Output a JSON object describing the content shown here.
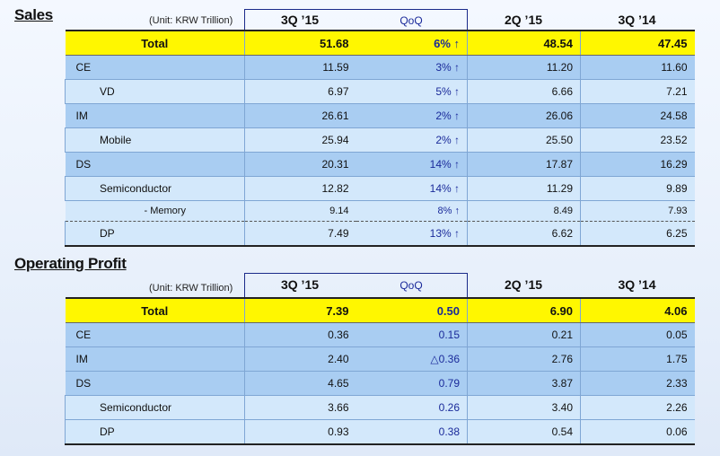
{
  "sales": {
    "title": "Sales",
    "unit": "(Unit: KRW Trillion)",
    "columns": [
      "3Q ’15",
      "QoQ",
      "2Q ’15",
      "3Q ’14"
    ],
    "rows": [
      {
        "label": "Total",
        "level": "total",
        "q3_15": "51.68",
        "qoq": "6% ↑",
        "q2_15": "48.54",
        "q3_14": "47.45"
      },
      {
        "label": "CE",
        "level": "l1",
        "q3_15": "11.59",
        "qoq": "3% ↑",
        "q2_15": "11.20",
        "q3_14": "11.60"
      },
      {
        "label": "VD",
        "level": "l2",
        "q3_15": "6.97",
        "qoq": "5% ↑",
        "q2_15": "6.66",
        "q3_14": "7.21"
      },
      {
        "label": "IM",
        "level": "l1",
        "q3_15": "26.61",
        "qoq": "2% ↑",
        "q2_15": "26.06",
        "q3_14": "24.58"
      },
      {
        "label": "Mobile",
        "level": "l2",
        "q3_15": "25.94",
        "qoq": "2% ↑",
        "q2_15": "25.50",
        "q3_14": "23.52"
      },
      {
        "label": "DS",
        "level": "l1",
        "q3_15": "20.31",
        "qoq": "14% ↑",
        "q2_15": "17.87",
        "q3_14": "16.29"
      },
      {
        "label": "Semiconductor",
        "level": "l2",
        "q3_15": "12.82",
        "qoq": "14% ↑",
        "q2_15": "11.29",
        "q3_14": "9.89"
      },
      {
        "label": "- Memory",
        "level": "l3",
        "q3_15": "9.14",
        "qoq": "8% ↑",
        "q2_15": "8.49",
        "q3_14": "7.93"
      },
      {
        "label": "DP",
        "level": "l2",
        "q3_15": "7.49",
        "qoq": "13% ↑",
        "q2_15": "6.62",
        "q3_14": "6.25"
      }
    ]
  },
  "op": {
    "title": "Operating Profit",
    "unit": "(Unit: KRW Trillion)",
    "columns": [
      "3Q ’15",
      "QoQ",
      "2Q ’15",
      "3Q ’14"
    ],
    "rows": [
      {
        "label": "Total",
        "level": "total",
        "q3_15": "7.39",
        "qoq": "0.50",
        "q2_15": "6.90",
        "q3_14": "4.06"
      },
      {
        "label": "CE",
        "level": "l1",
        "q3_15": "0.36",
        "qoq": "0.15",
        "q2_15": "0.21",
        "q3_14": "0.05"
      },
      {
        "label": "IM",
        "level": "l1",
        "q3_15": "2.40",
        "qoq": "△0.36",
        "q2_15": "2.76",
        "q3_14": "1.75"
      },
      {
        "label": "DS",
        "level": "l1",
        "q3_15": "4.65",
        "qoq": "0.79",
        "q2_15": "3.87",
        "q3_14": "2.33"
      },
      {
        "label": "Semiconductor",
        "level": "l2",
        "q3_15": "3.66",
        "qoq": "0.26",
        "q2_15": "3.40",
        "q3_14": "2.26"
      },
      {
        "label": "DP",
        "level": "l2",
        "q3_15": "0.93",
        "qoq": "0.38",
        "q2_15": "0.54",
        "q3_14": "0.06"
      }
    ]
  }
}
